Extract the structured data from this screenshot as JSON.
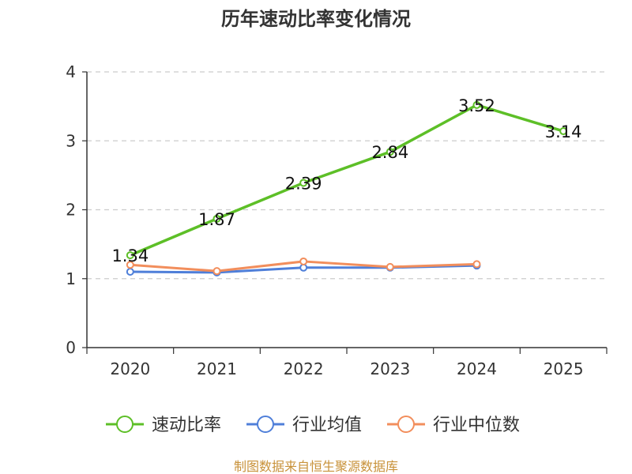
{
  "chart_data": {
    "type": "line",
    "title": "历年速动比率变化情况",
    "categories": [
      "2020",
      "2021",
      "2022",
      "2023",
      "2024",
      "2025"
    ],
    "ylim": [
      0,
      4
    ],
    "yticks": [
      0,
      1,
      2,
      3,
      4
    ],
    "grid": true,
    "legend_position": "bottom",
    "series": [
      {
        "name": "速动比率",
        "color": "#5dbf27",
        "values": [
          1.34,
          1.87,
          2.39,
          2.84,
          3.52,
          3.14
        ],
        "labels": [
          "1.34",
          "1.87",
          "2.39",
          "2.84",
          "3.52",
          "3.14"
        ]
      },
      {
        "name": "行业均值",
        "color": "#4f7fd9",
        "values": [
          1.1,
          1.09,
          1.16,
          1.16,
          1.19,
          null
        ]
      },
      {
        "name": "行业中位数",
        "color": "#f28e5c",
        "values": [
          1.2,
          1.11,
          1.25,
          1.17,
          1.21,
          null
        ]
      }
    ],
    "source": "制图数据来自恒生聚源数据库"
  }
}
